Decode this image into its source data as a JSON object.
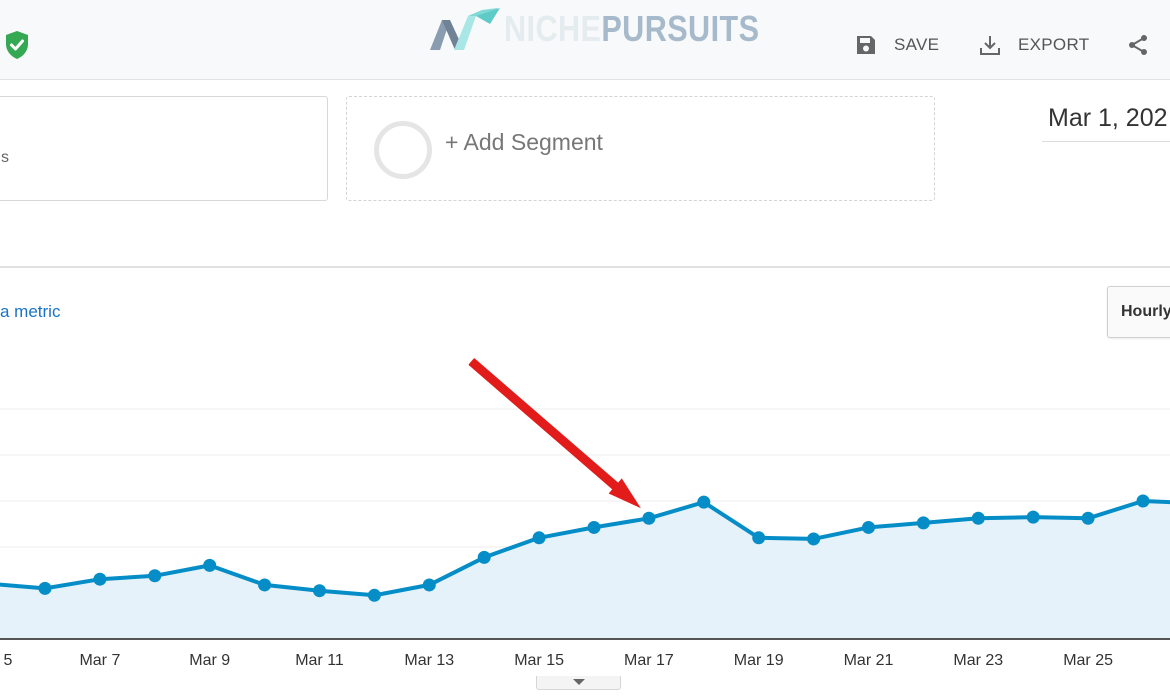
{
  "header": {
    "logo_niche": "NICHE",
    "logo_pursuits": "PURSUITS",
    "save_label": "SAVE",
    "export_label": "EXPORT"
  },
  "segments": {
    "current_fragment": "s",
    "add_label": "+ Add Segment"
  },
  "date_range": "Mar 1, 202",
  "metric_link": "a metric",
  "interval_button": "Hourly",
  "colors": {
    "line": "#058dc7",
    "area": "#e5f2f9",
    "arrow": "#e21b1b",
    "shield": "#34a853"
  },
  "chart_data": {
    "type": "area",
    "x_tick_labels": [
      "5",
      "Mar 7",
      "Mar 9",
      "Mar 11",
      "Mar 13",
      "Mar 15",
      "Mar 17",
      "Mar 19",
      "Mar 21",
      "Mar 23",
      "Mar 25"
    ],
    "x": [
      5,
      6,
      7,
      8,
      9,
      10,
      11,
      12,
      13,
      14,
      15,
      16,
      17,
      18,
      19,
      20,
      21,
      22,
      23,
      24,
      25,
      26,
      27
    ],
    "values": [
      2.4,
      2.2,
      2.6,
      2.75,
      3.2,
      2.35,
      2.1,
      1.9,
      2.35,
      3.55,
      4.4,
      4.85,
      5.25,
      5.95,
      4.4,
      4.35,
      4.85,
      5.05,
      5.25,
      5.3,
      5.25,
      6.0,
      5.9
    ],
    "ylim": [
      0,
      10
    ],
    "gridlines": [
      2,
      4,
      6,
      8,
      10
    ],
    "y_tick_labels": [],
    "annotation": {
      "type": "arrow",
      "points_to_x": 17
    }
  }
}
